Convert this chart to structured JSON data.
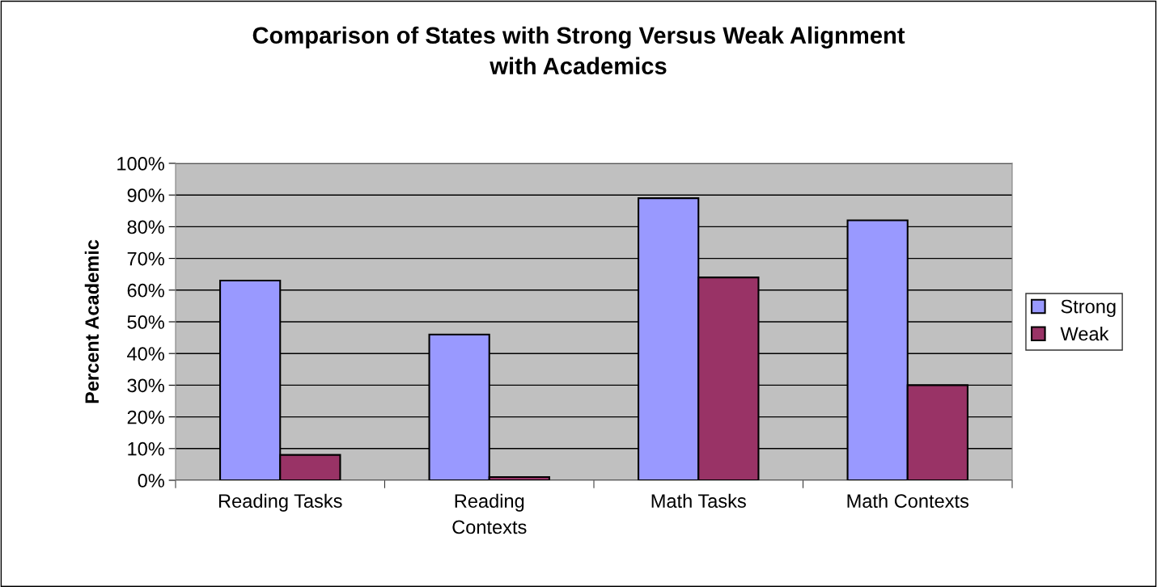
{
  "chart_data": {
    "type": "bar",
    "title": "Comparison of States with Strong Versus Weak Alignment\nwith Academics",
    "ylabel": "Percent Academic",
    "categories": [
      "Reading Tasks",
      "Reading\nContexts",
      "Math Tasks",
      "Math Contexts"
    ],
    "series": [
      {
        "name": "Strong",
        "color": "#9999ff",
        "values": [
          63,
          46,
          89,
          82
        ]
      },
      {
        "name": "Weak",
        "color": "#993366",
        "values": [
          8,
          1,
          64,
          30
        ]
      }
    ],
    "ylim": [
      0,
      100
    ],
    "yticks": [
      {
        "value": 0,
        "label": "0%"
      },
      {
        "value": 10,
        "label": "10%"
      },
      {
        "value": 20,
        "label": "20%"
      },
      {
        "value": 30,
        "label": "30%"
      },
      {
        "value": 40,
        "label": "40%"
      },
      {
        "value": 50,
        "label": "50%"
      },
      {
        "value": 60,
        "label": "60%"
      },
      {
        "value": 70,
        "label": "70%"
      },
      {
        "value": 80,
        "label": "80%"
      },
      {
        "value": 90,
        "label": "90%"
      },
      {
        "value": 100,
        "label": "100%"
      }
    ],
    "grid": "y",
    "legend": "right"
  }
}
